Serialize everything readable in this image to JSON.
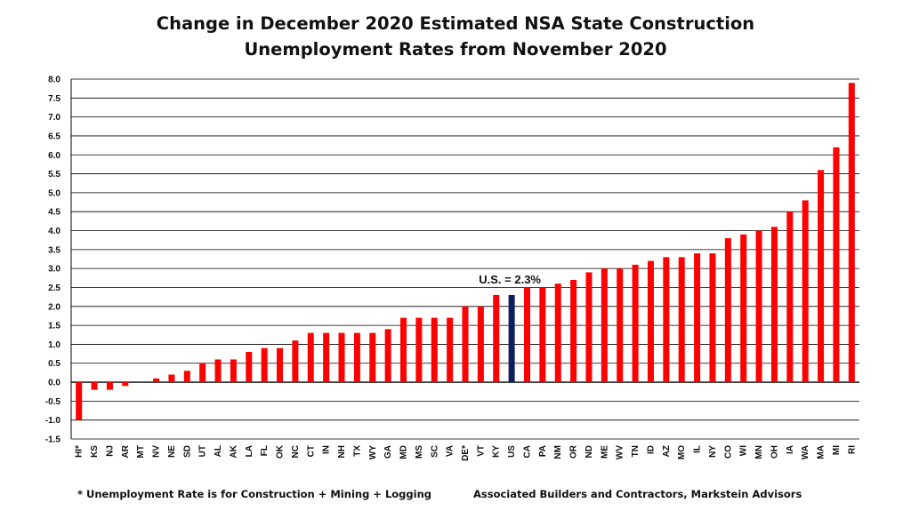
{
  "title_line1": "Change in December 2020 Estimated NSA State Construction",
  "title_line2": "Unemployment Rates from November 2020",
  "footnote": "* Unemployment Rate is for Construction + Mining + Logging",
  "source": "Associated Builders and Contractors, Markstein Advisors",
  "colors": {
    "bar": "#ff0000",
    "highlight": "#0d1f5c",
    "grid": "#000000"
  },
  "chart_data": {
    "type": "bar",
    "title": "Change in December 2020 Estimated NSA State Construction Unemployment Rates from November 2020",
    "xlabel": "",
    "ylabel": "",
    "ylim": [
      -1.5,
      8.0
    ],
    "yticks": [
      "-1.5",
      "-1.0",
      "-0.5",
      "0.0",
      "0.5",
      "1.0",
      "1.5",
      "2.0",
      "2.5",
      "3.0",
      "3.5",
      "4.0",
      "4.5",
      "5.0",
      "5.5",
      "6.0",
      "6.5",
      "7.0",
      "7.5",
      "8.0"
    ],
    "grid": true,
    "categories": [
      "HI*",
      "KS",
      "NJ",
      "AR",
      "MT",
      "NV",
      "NE",
      "SD",
      "UT",
      "AL",
      "AK",
      "LA",
      "FL",
      "OK",
      "NC",
      "CT",
      "IN",
      "NH",
      "TX",
      "WY",
      "GA",
      "MD",
      "MS",
      "SC",
      "VA",
      "DE*",
      "VT",
      "KY",
      "US",
      "CA",
      "PA",
      "NM",
      "OR",
      "ND",
      "ME",
      "WV",
      "TN",
      "ID",
      "AZ",
      "MO",
      "IL",
      "NY",
      "CO",
      "WI",
      "MN",
      "OH",
      "IA",
      "WA",
      "MA",
      "MI",
      "RI"
    ],
    "values": [
      -1.0,
      -0.2,
      -0.2,
      -0.1,
      0.0,
      0.1,
      0.2,
      0.3,
      0.5,
      0.6,
      0.6,
      0.8,
      0.9,
      0.9,
      1.1,
      1.3,
      1.3,
      1.3,
      1.3,
      1.3,
      1.4,
      1.7,
      1.7,
      1.7,
      1.7,
      2.0,
      2.0,
      2.3,
      2.3,
      2.5,
      2.5,
      2.6,
      2.7,
      2.9,
      3.0,
      3.0,
      3.1,
      3.2,
      3.3,
      3.3,
      3.4,
      3.4,
      3.8,
      3.9,
      4.0,
      4.1,
      4.5,
      4.8,
      5.6,
      6.2,
      7.9
    ],
    "highlight_category": "US",
    "annotation": {
      "text": "U.S. = 2.3%",
      "category": "US",
      "value": 2.3
    }
  }
}
